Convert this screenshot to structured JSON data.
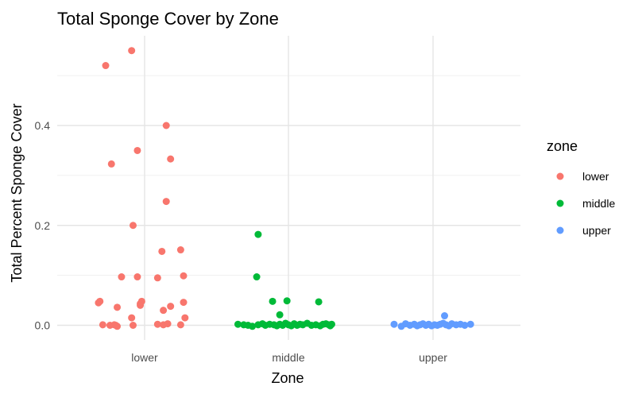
{
  "chart_data": {
    "type": "scatter",
    "title": "Total Sponge Cover by Zone",
    "xlabel": "Zone",
    "ylabel": "Total Percent Sponge Cover",
    "categories": [
      "lower",
      "middle",
      "upper"
    ],
    "y_ticks": [
      0.0,
      0.2,
      0.4
    ],
    "y_tick_labels": [
      "0.0",
      "0.2",
      "0.4"
    ],
    "ylim": [
      -0.04,
      0.6
    ],
    "grid": true,
    "legend": {
      "title": "zone",
      "position": "right",
      "entries": [
        "lower",
        "middle",
        "upper"
      ]
    },
    "colors": {
      "lower": "#F8766D",
      "middle": "#00BA38",
      "upper": "#619CFF"
    },
    "series": [
      {
        "name": "lower",
        "points": [
          {
            "x": -0.27,
            "y": 0.52
          },
          {
            "x": -0.09,
            "y": 0.55
          },
          {
            "x": -0.23,
            "y": 0.323
          },
          {
            "x": -0.05,
            "y": 0.35
          },
          {
            "x": 0.15,
            "y": 0.4
          },
          {
            "x": 0.18,
            "y": 0.333
          },
          {
            "x": 0.15,
            "y": 0.248
          },
          {
            "x": -0.08,
            "y": 0.2
          },
          {
            "x": 0.12,
            "y": 0.148
          },
          {
            "x": 0.25,
            "y": 0.151
          },
          {
            "x": -0.05,
            "y": 0.097
          },
          {
            "x": -0.16,
            "y": 0.097
          },
          {
            "x": 0.09,
            "y": 0.095
          },
          {
            "x": 0.27,
            "y": 0.099
          },
          {
            "x": -0.31,
            "y": 0.048
          },
          {
            "x": -0.32,
            "y": 0.045
          },
          {
            "x": -0.02,
            "y": 0.048
          },
          {
            "x": -0.03,
            "y": 0.043
          },
          {
            "x": -0.03,
            "y": 0.04
          },
          {
            "x": 0.27,
            "y": 0.046
          },
          {
            "x": -0.19,
            "y": 0.036
          },
          {
            "x": 0.18,
            "y": 0.038
          },
          {
            "x": 0.13,
            "y": 0.03
          },
          {
            "x": -0.09,
            "y": 0.015
          },
          {
            "x": 0.28,
            "y": 0.015
          },
          {
            "x": -0.29,
            "y": 0.001
          },
          {
            "x": -0.21,
            "y": 0.001
          },
          {
            "x": -0.19,
            "y": -0.002
          },
          {
            "x": -0.08,
            "y": 0.0
          },
          {
            "x": 0.09,
            "y": 0.002
          },
          {
            "x": 0.13,
            "y": 0.001
          },
          {
            "x": 0.16,
            "y": 0.003
          },
          {
            "x": 0.25,
            "y": 0.001
          },
          {
            "x": -0.24,
            "y": 0.0
          },
          {
            "x": -0.2,
            "y": 0.0
          }
        ]
      },
      {
        "name": "middle",
        "points": [
          {
            "x": -0.21,
            "y": 0.182
          },
          {
            "x": -0.22,
            "y": 0.097
          },
          {
            "x": -0.11,
            "y": 0.048
          },
          {
            "x": -0.01,
            "y": 0.049
          },
          {
            "x": 0.21,
            "y": 0.047
          },
          {
            "x": -0.06,
            "y": 0.021
          },
          {
            "x": -0.35,
            "y": 0.002
          },
          {
            "x": -0.31,
            "y": 0.001
          },
          {
            "x": -0.28,
            "y": 0.0
          },
          {
            "x": -0.25,
            "y": -0.002
          },
          {
            "x": -0.21,
            "y": 0.001
          },
          {
            "x": -0.18,
            "y": 0.003
          },
          {
            "x": -0.16,
            "y": 0.0
          },
          {
            "x": -0.13,
            "y": 0.002
          },
          {
            "x": -0.1,
            "y": 0.001
          },
          {
            "x": -0.08,
            "y": -0.001
          },
          {
            "x": -0.06,
            "y": 0.002
          },
          {
            "x": -0.04,
            "y": 0.0
          },
          {
            "x": -0.02,
            "y": 0.004
          },
          {
            "x": 0.0,
            "y": 0.001
          },
          {
            "x": 0.02,
            "y": -0.001
          },
          {
            "x": 0.04,
            "y": 0.003
          },
          {
            "x": 0.06,
            "y": 0.0
          },
          {
            "x": 0.08,
            "y": 0.002
          },
          {
            "x": 0.1,
            "y": 0.001
          },
          {
            "x": 0.13,
            "y": 0.004
          },
          {
            "x": 0.16,
            "y": 0.0
          },
          {
            "x": 0.19,
            "y": 0.001
          },
          {
            "x": 0.22,
            "y": -0.001
          },
          {
            "x": 0.24,
            "y": 0.002
          },
          {
            "x": 0.26,
            "y": 0.003
          },
          {
            "x": 0.28,
            "y": 0.001
          },
          {
            "x": 0.29,
            "y": -0.001
          },
          {
            "x": 0.3,
            "y": 0.002
          }
        ]
      },
      {
        "name": "upper",
        "points": [
          {
            "x": 0.08,
            "y": 0.019
          },
          {
            "x": -0.27,
            "y": 0.002
          },
          {
            "x": -0.22,
            "y": -0.002
          },
          {
            "x": -0.19,
            "y": 0.003
          },
          {
            "x": -0.16,
            "y": 0.0
          },
          {
            "x": -0.13,
            "y": 0.002
          },
          {
            "x": -0.11,
            "y": -0.001
          },
          {
            "x": -0.09,
            "y": 0.001
          },
          {
            "x": -0.07,
            "y": 0.003
          },
          {
            "x": -0.05,
            "y": 0.0
          },
          {
            "x": -0.03,
            "y": 0.002
          },
          {
            "x": -0.01,
            "y": -0.001
          },
          {
            "x": 0.01,
            "y": 0.001
          },
          {
            "x": 0.03,
            "y": 0.0
          },
          {
            "x": 0.05,
            "y": 0.002
          },
          {
            "x": 0.07,
            "y": 0.004
          },
          {
            "x": 0.09,
            "y": 0.001
          },
          {
            "x": 0.11,
            "y": -0.001
          },
          {
            "x": 0.13,
            "y": 0.003
          },
          {
            "x": 0.16,
            "y": 0.001
          },
          {
            "x": 0.19,
            "y": 0.002
          },
          {
            "x": 0.22,
            "y": 0.0
          },
          {
            "x": 0.26,
            "y": 0.002
          }
        ]
      }
    ]
  }
}
